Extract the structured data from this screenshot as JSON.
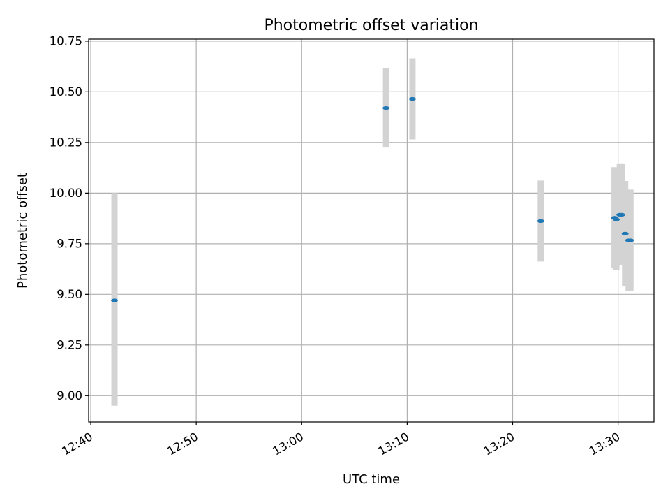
{
  "chart_data": {
    "type": "scatter",
    "title": "Photometric offset variation",
    "xlabel": "UTC time",
    "ylabel": "Photometric offset",
    "x_tick_labels": [
      "12:40",
      "12:50",
      "13:00",
      "13:10",
      "13:20",
      "13:30"
    ],
    "x_ticks_minutes": [
      760,
      770,
      780,
      790,
      800,
      810
    ],
    "y_ticks": [
      9.0,
      9.25,
      9.5,
      9.75,
      10.0,
      10.25,
      10.5,
      10.75
    ],
    "xlim_minutes": [
      759.8,
      813.4
    ],
    "ylim": [
      8.87,
      10.76
    ],
    "grid": true,
    "colors": {
      "marker": "#1f77b4",
      "errorbar": "#d3d3d3",
      "grid": "#b0b0b0"
    },
    "series": [
      {
        "points": [
          {
            "time": "12:42:15",
            "y": 9.47,
            "yerr_low": 0.52,
            "yerr_high": 0.53
          },
          {
            "time": "13:08:00",
            "y": 10.42,
            "yerr_low": 0.195,
            "yerr_high": 0.195
          },
          {
            "time": "13:10:30",
            "y": 10.465,
            "yerr_low": 0.2,
            "yerr_high": 0.2
          },
          {
            "time": "13:22:40",
            "y": 9.862,
            "yerr_low": 0.2,
            "yerr_high": 0.2
          },
          {
            "time": "13:29:40",
            "y": 9.878,
            "yerr_low": 0.25,
            "yerr_high": 0.25
          },
          {
            "time": "13:29:50",
            "y": 9.87,
            "yerr_low": 0.25,
            "yerr_high": 0.25
          },
          {
            "time": "13:30:10",
            "y": 9.893,
            "yerr_low": 0.25,
            "yerr_high": 0.25
          },
          {
            "time": "13:30:20",
            "y": 9.893,
            "yerr_low": 0.25,
            "yerr_high": 0.25
          },
          {
            "time": "13:30:40",
            "y": 9.8,
            "yerr_low": 0.26,
            "yerr_high": 0.26
          },
          {
            "time": "13:31:00",
            "y": 9.767,
            "yerr_low": 0.25,
            "yerr_high": 0.25
          },
          {
            "time": "13:31:10",
            "y": 9.767,
            "yerr_low": 0.25,
            "yerr_high": 0.25
          }
        ]
      }
    ]
  }
}
